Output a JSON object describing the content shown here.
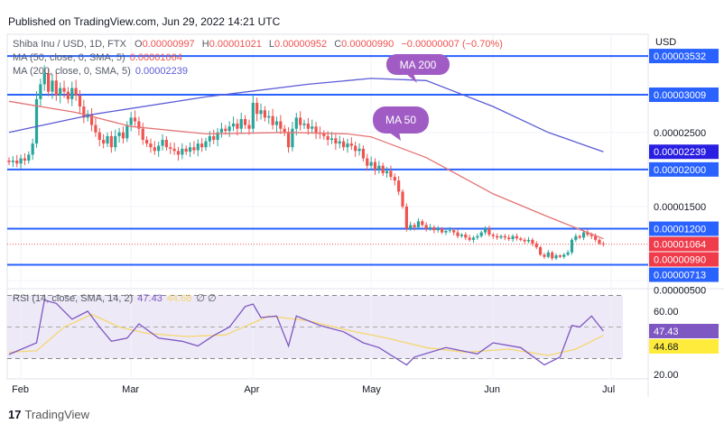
{
  "published": "Published on TradingView.com, Jun 29, 2022 14:21 UTC",
  "logo": "TradingView",
  "chart_data": {
    "type": "candlestick",
    "title": "Shiba Inu / USD, 1D, FTX",
    "ohlc_legend": {
      "o_label": "O",
      "o": "0.00000997",
      "h_label": "H",
      "h": "0.00001021",
      "l_label": "L",
      "l": "0.00000952",
      "c_label": "C",
      "c": "0.00000990",
      "change": "−0.00000007 (−0.70%)"
    },
    "currency": "USD",
    "start_date": "2022-01-29",
    "closes": [
      2.1e-05,
      2.12e-05,
      2.08e-05,
      2.15e-05,
      2.12e-05,
      2.2e-05,
      2.35e-05,
      2.95e-05,
      3.15e-05,
      3.3e-05,
      3.05e-05,
      3.2e-05,
      3e-05,
      3.1e-05,
      3.05e-05,
      2.95e-05,
      3.1e-05,
      3e-05,
      2.85e-05,
      2.7e-05,
      2.75e-05,
      2.6e-05,
      2.5e-05,
      2.4e-05,
      2.35e-05,
      2.45e-05,
      2.3e-05,
      2.45e-05,
      2.5e-05,
      2.42e-05,
      2.6e-05,
      2.7e-05,
      2.65e-05,
      2.55e-05,
      2.4e-05,
      2.35e-05,
      2.3e-05,
      2.25e-05,
      2.32e-05,
      2.4e-05,
      2.3e-05,
      2.28e-05,
      2.25e-05,
      2.2e-05,
      2.28e-05,
      2.24e-05,
      2.3e-05,
      2.26e-05,
      2.35e-05,
      2.3e-05,
      2.38e-05,
      2.45e-05,
      2.4e-05,
      2.5e-05,
      2.55e-05,
      2.52e-05,
      2.58e-05,
      2.62e-05,
      2.55e-05,
      2.68e-05,
      2.6e-05,
      2.55e-05,
      2.9e-05,
      2.75e-05,
      2.8e-05,
      2.7e-05,
      2.72e-05,
      2.6e-05,
      2.65e-05,
      2.55e-05,
      2.5e-05,
      2.3e-05,
      2.55e-05,
      2.7e-05,
      2.6e-05,
      2.62e-05,
      2.55e-05,
      2.58e-05,
      2.5e-05,
      2.48e-05,
      2.45e-05,
      2.4e-05,
      2.42e-05,
      2.35e-05,
      2.38e-05,
      2.3e-05,
      2.35e-05,
      2.32e-05,
      2.25e-05,
      2.28e-05,
      2.15e-05,
      2.05e-05,
      2.1e-05,
      2e-05,
      2.05e-05,
      1.95e-05,
      1.98e-05,
      1.9e-05,
      1.85e-05,
      1.7e-05,
      1.5e-05,
      1.2e-05,
      1.25e-05,
      1.22e-05,
      1.3e-05,
      1.25e-05,
      1.2e-05,
      1.22e-05,
      1.18e-05,
      1.2e-05,
      1.15e-05,
      1.17e-05,
      1.18e-05,
      1.15e-05,
      1.1e-05,
      1.12e-05,
      1.08e-05,
      1.05e-05,
      1.08e-05,
      1.1e-05,
      1.15e-05,
      1.2e-05,
      1.12e-05,
      1.1e-05,
      1.08e-05,
      1.1e-05,
      1.08e-05,
      1.06e-05,
      1.1e-05,
      1.07e-05,
      1.05e-05,
      1.03e-05,
      1.05e-05,
      1e-05,
      9.5e-06,
      8.5e-06,
      8.2e-06,
      8.8e-06,
      8e-06,
      8.4e-06,
      8.2e-06,
      8.5e-06,
      8.8e-06,
      1.05e-05,
      1.1e-05,
      1.08e-05,
      1.15e-05,
      1.12e-05,
      1.1e-05,
      1.05e-05,
      1e-05,
      9.9e-06
    ],
    "ma50": {
      "label": "MA (50, close, 0, SMA, 5)",
      "value": "0.00001064",
      "color": "#e57373",
      "points": [
        [
          "2022-01-29",
          2.92e-05
        ],
        [
          "2022-02-15",
          2.77e-05
        ],
        [
          "2022-03-01",
          2.58e-05
        ],
        [
          "2022-03-20",
          2.48e-05
        ],
        [
          "2022-04-10",
          2.5e-05
        ],
        [
          "2022-04-25",
          2.48e-05
        ],
        [
          "2022-05-01",
          2.44e-05
        ],
        [
          "2022-05-15",
          2.16e-05
        ],
        [
          "2022-06-01",
          1.67e-05
        ],
        [
          "2022-06-15",
          1.36e-05
        ],
        [
          "2022-06-29",
          1.064e-05
        ]
      ]
    },
    "ma200": {
      "label": "MA (200, close, 0, SMA, 5)",
      "value": "0.00002239",
      "color": "#5b5bd6",
      "points": [
        [
          "2022-01-29",
          2.5e-05
        ],
        [
          "2022-02-20",
          2.75e-05
        ],
        [
          "2022-03-20",
          2.98e-05
        ],
        [
          "2022-04-15",
          3.15e-05
        ],
        [
          "2022-05-01",
          3.23e-05
        ],
        [
          "2022-05-15",
          3.2e-05
        ],
        [
          "2022-06-01",
          2.85e-05
        ],
        [
          "2022-06-15",
          2.5e-05
        ],
        [
          "2022-06-29",
          2.239e-05
        ]
      ]
    },
    "horizontal_levels": [
      "0.00003532",
      "0.00003009",
      "0.00002000",
      "0.00001200",
      "0.00000713"
    ],
    "last_price": "0.00000990",
    "y_ticks": [
      "0.00002500",
      "0.00001500",
      "0.00000500"
    ],
    "annotations": [
      "MA 200",
      "MA 50"
    ],
    "x_ticks": [
      [
        "2022-02-01",
        "Feb"
      ],
      [
        "2022-03-01",
        "Mar"
      ],
      [
        "2022-04-01",
        "Apr"
      ],
      [
        "2022-05-01",
        "May"
      ],
      [
        "2022-06-01",
        "Jun"
      ],
      [
        "2022-07-01",
        "Jul"
      ]
    ],
    "rsi": {
      "label": "RSI (14, close, SMA, 14, 2)",
      "value": "47.43",
      "sma_value": "44.68",
      "extra": "∅ ∅",
      "ylim": [
        20,
        70
      ],
      "bands": [
        30,
        70
      ],
      "y_ticks": [
        "60.00",
        "20.00"
      ],
      "color": "#7e57c2",
      "sma_color": "#f5d76e",
      "points": [
        [
          "2022-01-29",
          32.6
        ],
        [
          "2022-02-05",
          40
        ],
        [
          "2022-02-07",
          67
        ],
        [
          "2022-02-10",
          65
        ],
        [
          "2022-02-14",
          55
        ],
        [
          "2022-02-18",
          60
        ],
        [
          "2022-02-21",
          50
        ],
        [
          "2022-02-24",
          41
        ],
        [
          "2022-02-28",
          43
        ],
        [
          "2022-03-03",
          52
        ],
        [
          "2022-03-08",
          43
        ],
        [
          "2022-03-14",
          41
        ],
        [
          "2022-03-18",
          38
        ],
        [
          "2022-03-22",
          44.6
        ],
        [
          "2022-03-26",
          50
        ],
        [
          "2022-03-30",
          63
        ],
        [
          "2022-04-01",
          64.6
        ],
        [
          "2022-04-03",
          56
        ],
        [
          "2022-04-07",
          57
        ],
        [
          "2022-04-10",
          38
        ],
        [
          "2022-04-12",
          57
        ],
        [
          "2022-04-18",
          51
        ],
        [
          "2022-04-24",
          47
        ],
        [
          "2022-04-29",
          40
        ],
        [
          "2022-05-03",
          37
        ],
        [
          "2022-05-10",
          26
        ],
        [
          "2022-05-12",
          31
        ],
        [
          "2022-05-20",
          37
        ],
        [
          "2022-05-28",
          33
        ],
        [
          "2022-06-01",
          40
        ],
        [
          "2022-06-08",
          37
        ],
        [
          "2022-06-14",
          26
        ],
        [
          "2022-06-18",
          31
        ],
        [
          "2022-06-21",
          51
        ],
        [
          "2022-06-23",
          50
        ],
        [
          "2022-06-26",
          57
        ],
        [
          "2022-06-29",
          47.43
        ]
      ],
      "sma_points": [
        [
          "2022-01-29",
          34
        ],
        [
          "2022-02-05",
          35
        ],
        [
          "2022-02-12",
          50
        ],
        [
          "2022-02-19",
          58
        ],
        [
          "2022-02-26",
          50
        ],
        [
          "2022-03-05",
          46
        ],
        [
          "2022-03-15",
          44
        ],
        [
          "2022-03-25",
          45
        ],
        [
          "2022-04-05",
          57
        ],
        [
          "2022-04-15",
          54
        ],
        [
          "2022-04-25",
          48
        ],
        [
          "2022-05-05",
          43
        ],
        [
          "2022-05-15",
          37
        ],
        [
          "2022-05-25",
          34
        ],
        [
          "2022-06-05",
          36
        ],
        [
          "2022-06-15",
          32
        ],
        [
          "2022-06-22",
          36
        ],
        [
          "2022-06-29",
          44.68
        ]
      ]
    }
  },
  "colors": {
    "up": "#26a69a",
    "down": "#ef5350",
    "level": "#2962ff",
    "annotation": "#a05cc4"
  }
}
